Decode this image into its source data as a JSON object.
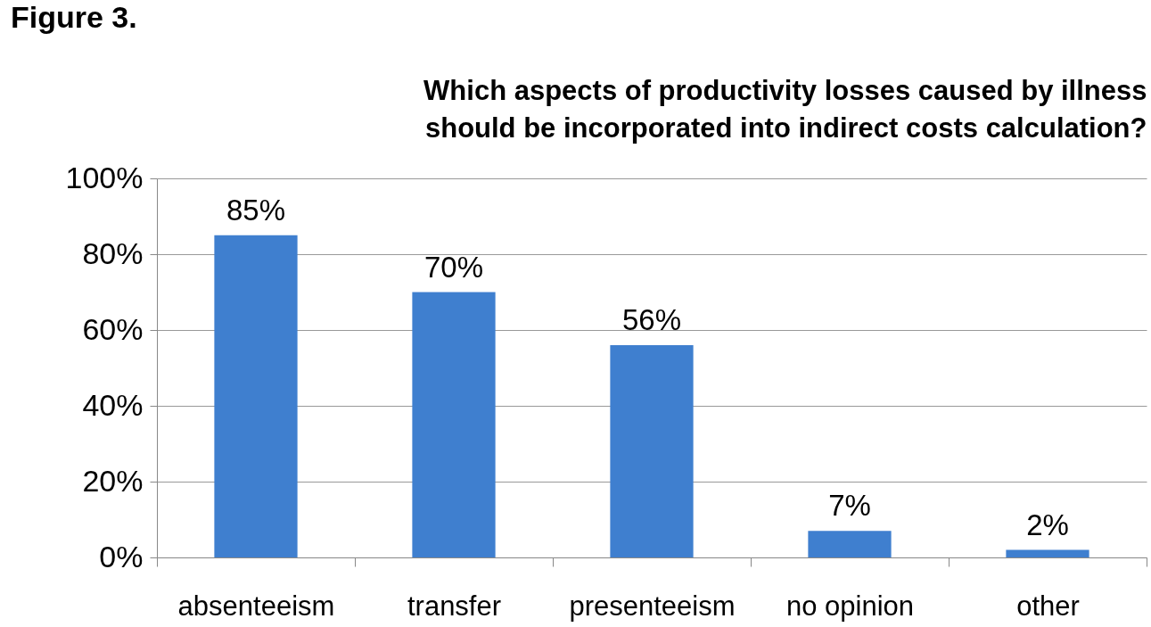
{
  "chart_data": {
    "type": "bar",
    "title": [
      "Which aspects of productivity losses caused by illness",
      "should be incorporated into indirect costs calculation?"
    ],
    "annotations": [
      "Figure 3."
    ],
    "categories": [
      "absenteeism",
      "transfer",
      "presenteeism",
      "no opinion",
      "other"
    ],
    "values": [
      85,
      70,
      56,
      7,
      2
    ],
    "value_labels": [
      "85%",
      "70%",
      "56%",
      "7%",
      "2%"
    ],
    "color": "#3f7fcf",
    "ylim": [
      0,
      100
    ],
    "yticks": [
      {
        "value": 0,
        "label": "0%"
      },
      {
        "value": 20,
        "label": "20%"
      },
      {
        "value": 40,
        "label": "40%"
      },
      {
        "value": 60,
        "label": "60%"
      },
      {
        "value": 80,
        "label": "80%"
      },
      {
        "value": 100,
        "label": "100%"
      }
    ],
    "grid": "y"
  }
}
